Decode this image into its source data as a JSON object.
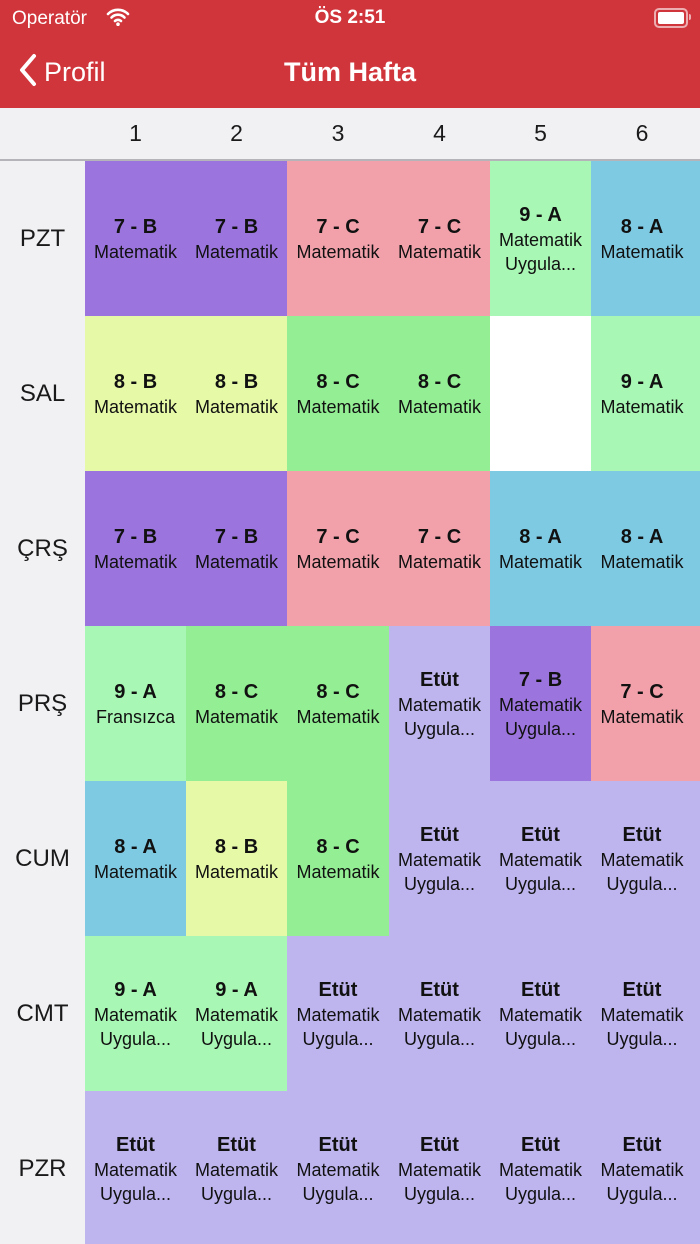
{
  "status_bar": {
    "carrier": "Operatör",
    "time": "ÖS 2:51"
  },
  "nav": {
    "back_label": "Profil",
    "title": "Tüm Hafta"
  },
  "colors": {
    "header_bar": "#d1353c",
    "purple": "#9b74de",
    "pink": "#f2a1ab",
    "light_green": "#a8f7b4",
    "green": "#93ee94",
    "blue": "#7ecae3",
    "yellow": "#e5f9a7",
    "lavender": "#beb4ee",
    "white": "#ffffff"
  },
  "periods": [
    "1",
    "2",
    "3",
    "4",
    "5",
    "6"
  ],
  "days": [
    {
      "label": "PZT",
      "lessons": [
        {
          "cls": "7 - B",
          "subject": "Matematik",
          "extra": "",
          "color": "purple"
        },
        {
          "cls": "7 - B",
          "subject": "Matematik",
          "extra": "",
          "color": "purple"
        },
        {
          "cls": "7 - C",
          "subject": "Matematik",
          "extra": "",
          "color": "pink"
        },
        {
          "cls": "7 - C",
          "subject": "Matematik",
          "extra": "",
          "color": "pink"
        },
        {
          "cls": "9 - A",
          "subject": "Matematik",
          "extra": "Uygula...",
          "color": "light_green"
        },
        {
          "cls": "8 - A",
          "subject": "Matematik",
          "extra": "",
          "color": "blue"
        }
      ]
    },
    {
      "label": "SAL",
      "lessons": [
        {
          "cls": "8 - B",
          "subject": "Matematik",
          "extra": "",
          "color": "yellow"
        },
        {
          "cls": "8 - B",
          "subject": "Matematik",
          "extra": "",
          "color": "yellow"
        },
        {
          "cls": "8 - C",
          "subject": "Matematik",
          "extra": "",
          "color": "green"
        },
        {
          "cls": "8 - C",
          "subject": "Matematik",
          "extra": "",
          "color": "green"
        },
        {
          "cls": "",
          "subject": "",
          "extra": "",
          "color": "white"
        },
        {
          "cls": "9 - A",
          "subject": "Matematik",
          "extra": "",
          "color": "light_green"
        }
      ]
    },
    {
      "label": "ÇRŞ",
      "lessons": [
        {
          "cls": "7 - B",
          "subject": "Matematik",
          "extra": "",
          "color": "purple"
        },
        {
          "cls": "7 - B",
          "subject": "Matematik",
          "extra": "",
          "color": "purple"
        },
        {
          "cls": "7 - C",
          "subject": "Matematik",
          "extra": "",
          "color": "pink"
        },
        {
          "cls": "7 - C",
          "subject": "Matematik",
          "extra": "",
          "color": "pink"
        },
        {
          "cls": "8 - A",
          "subject": "Matematik",
          "extra": "",
          "color": "blue"
        },
        {
          "cls": "8 - A",
          "subject": "Matematik",
          "extra": "",
          "color": "blue"
        }
      ]
    },
    {
      "label": "PRŞ",
      "lessons": [
        {
          "cls": "9 - A",
          "subject": "Fransızca",
          "extra": "",
          "color": "light_green"
        },
        {
          "cls": "8 - C",
          "subject": "Matematik",
          "extra": "",
          "color": "green"
        },
        {
          "cls": "8 - C",
          "subject": "Matematik",
          "extra": "",
          "color": "green"
        },
        {
          "cls": "Etüt",
          "subject": "Matematik",
          "extra": "Uygula...",
          "color": "lavender"
        },
        {
          "cls": "7 - B",
          "subject": "Matematik",
          "extra": "Uygula...",
          "color": "purple"
        },
        {
          "cls": "7 - C",
          "subject": "Matematik",
          "extra": "",
          "color": "pink"
        }
      ]
    },
    {
      "label": "CUM",
      "lessons": [
        {
          "cls": "8 - A",
          "subject": "Matematik",
          "extra": "",
          "color": "blue"
        },
        {
          "cls": "8 - B",
          "subject": "Matematik",
          "extra": "",
          "color": "yellow"
        },
        {
          "cls": "8 - C",
          "subject": "Matematik",
          "extra": "",
          "color": "green"
        },
        {
          "cls": "Etüt",
          "subject": "Matematik",
          "extra": "Uygula...",
          "color": "lavender"
        },
        {
          "cls": "Etüt",
          "subject": "Matematik",
          "extra": "Uygula...",
          "color": "lavender"
        },
        {
          "cls": "Etüt",
          "subject": "Matematik",
          "extra": "Uygula...",
          "color": "lavender"
        }
      ]
    },
    {
      "label": "CMT",
      "lessons": [
        {
          "cls": "9 - A",
          "subject": "Matematik",
          "extra": "Uygula...",
          "color": "light_green"
        },
        {
          "cls": "9 - A",
          "subject": "Matematik",
          "extra": "Uygula...",
          "color": "light_green"
        },
        {
          "cls": "Etüt",
          "subject": "Matematik",
          "extra": "Uygula...",
          "color": "lavender"
        },
        {
          "cls": "Etüt",
          "subject": "Matematik",
          "extra": "Uygula...",
          "color": "lavender"
        },
        {
          "cls": "Etüt",
          "subject": "Matematik",
          "extra": "Uygula...",
          "color": "lavender"
        },
        {
          "cls": "Etüt",
          "subject": "Matematik",
          "extra": "Uygula...",
          "color": "lavender"
        }
      ]
    },
    {
      "label": "PZR",
      "lessons": [
        {
          "cls": "Etüt",
          "subject": "Matematik",
          "extra": "Uygula...",
          "color": "lavender"
        },
        {
          "cls": "Etüt",
          "subject": "Matematik",
          "extra": "Uygula...",
          "color": "lavender"
        },
        {
          "cls": "Etüt",
          "subject": "Matematik",
          "extra": "Uygula...",
          "color": "lavender"
        },
        {
          "cls": "Etüt",
          "subject": "Matematik",
          "extra": "Uygula...",
          "color": "lavender"
        },
        {
          "cls": "Etüt",
          "subject": "Matematik",
          "extra": "Uygula...",
          "color": "lavender"
        },
        {
          "cls": "Etüt",
          "subject": "Matematik",
          "extra": "Uygula...",
          "color": "lavender"
        }
      ]
    }
  ]
}
